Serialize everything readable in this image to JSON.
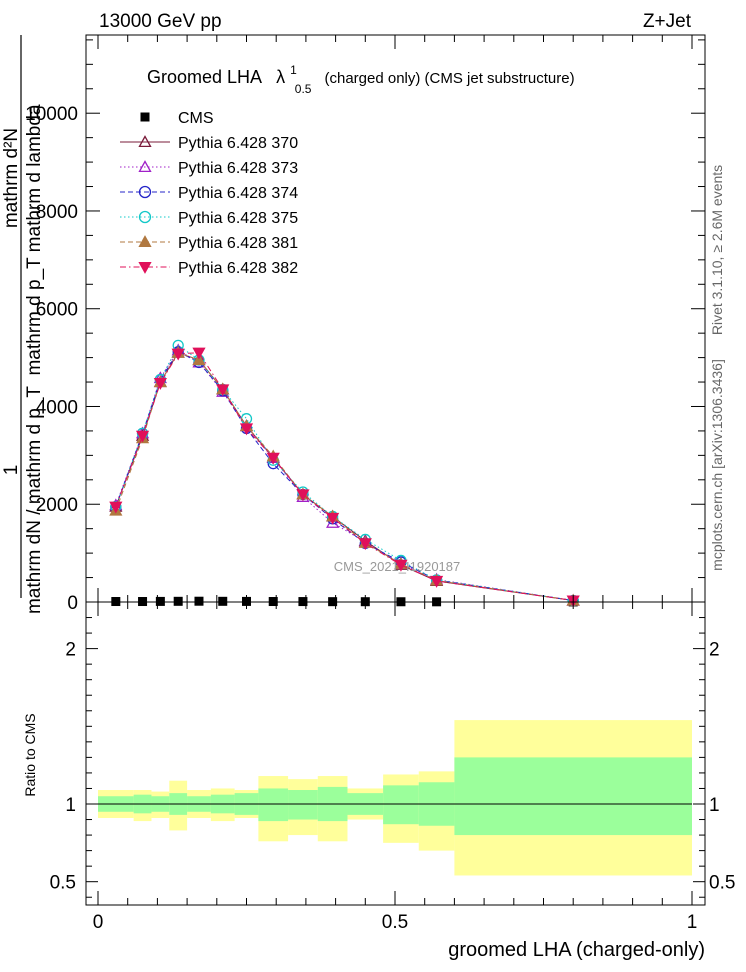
{
  "header": {
    "left": "13000 GeV pp",
    "right": "Z+Jet"
  },
  "side_labels": {
    "rivet": "Rivet 3.1.10, ≥ 2.6M events",
    "mcplots": "mcplots.cern.ch [arXiv:1306.3436]"
  },
  "chart_data": [
    {
      "type": "line",
      "panel": "main",
      "title": {
        "main": "Groomed LHA",
        "symbol": "λ",
        "superscript": "1",
        "subscript": "0.5",
        "suffix": "(charged only) (CMS jet substructure)"
      },
      "ylabel": {
        "numerator_one": "1",
        "upper": "mathrm d²N",
        "upper_lower": "mathrm d p_T mathrm d lambda",
        "lower": "mathrm dN / mathrm d p_T"
      },
      "watermark": "CMS_2021_I1920187",
      "xlim": [
        0,
        1
      ],
      "ylim": [
        0,
        11600
      ],
      "yticks": [
        0,
        2000,
        4000,
        6000,
        8000,
        10000
      ],
      "ytick_labels": [
        "0",
        "2000",
        "4000",
        "6000",
        "8000",
        "10000"
      ],
      "legend_position": "top-left",
      "x": [
        0.03,
        0.075,
        0.105,
        0.135,
        0.17,
        0.21,
        0.25,
        0.295,
        0.345,
        0.395,
        0.45,
        0.51,
        0.57,
        0.8
      ],
      "series": [
        {
          "name": "CMS",
          "color": "#000000",
          "marker": "square",
          "values": [
            10,
            10,
            12,
            14,
            16,
            14,
            12,
            10,
            9,
            7,
            6,
            5,
            4,
            2
          ]
        },
        {
          "name": "Pythia 6.428 370",
          "color": "#7a1b3a",
          "marker": "triangle-open",
          "dash": "solid",
          "values": [
            1950,
            3400,
            4500,
            5100,
            4950,
            4350,
            3600,
            2950,
            2200,
            1750,
            1250,
            760,
            430,
            30
          ]
        },
        {
          "name": "Pythia 6.428 373",
          "color": "#a020c8",
          "marker": "triangle-open",
          "dash": "dotted",
          "values": [
            1980,
            3450,
            4580,
            5150,
            4900,
            4300,
            3600,
            2950,
            2150,
            1620,
            1230,
            780,
            460,
            30
          ]
        },
        {
          "name": "Pythia 6.428 374",
          "color": "#2424c8",
          "marker": "circle-open",
          "dash": "dashed",
          "values": [
            1950,
            3450,
            4550,
            5120,
            4900,
            4320,
            3550,
            2830,
            2200,
            1700,
            1200,
            820,
            450,
            30
          ]
        },
        {
          "name": "Pythia 6.428 375",
          "color": "#12c8c8",
          "marker": "circle-open",
          "dash": "dotted",
          "values": [
            1950,
            3450,
            4550,
            5250,
            4950,
            4350,
            3750,
            2900,
            2250,
            1750,
            1280,
            850,
            450,
            30
          ]
        },
        {
          "name": "Pythia 6.428 381",
          "color": "#b07840",
          "marker": "triangle-filled",
          "dash": "dashed",
          "values": [
            1870,
            3350,
            4500,
            5100,
            4950,
            4350,
            3600,
            2980,
            2200,
            1750,
            1210,
            780,
            440,
            30
          ]
        },
        {
          "name": "Pythia 6.428 382",
          "color": "#e0105a",
          "marker": "triangle-down-filled",
          "dash": "dashdot",
          "values": [
            1950,
            3400,
            4480,
            5080,
            5100,
            4350,
            3550,
            2950,
            2200,
            1720,
            1200,
            760,
            430,
            30
          ]
        }
      ]
    },
    {
      "type": "area",
      "panel": "ratio",
      "ylabel": "Ratio to CMS",
      "xlabel": "groomed LHA (charged-only)",
      "xlim": [
        0,
        1
      ],
      "ylim": [
        0.35,
        2.3
      ],
      "yticks": [
        0.5,
        1,
        2
      ],
      "ytick_labels": [
        "0.5",
        "1",
        "2"
      ],
      "xticks": [
        0,
        0.5,
        1
      ],
      "xtick_labels": [
        "0",
        "0.5",
        "1"
      ],
      "bins": [
        {
          "x0": 0.0,
          "x1": 0.06,
          "stat": [
            0.95,
            1.05
          ],
          "total": [
            0.91,
            1.09
          ]
        },
        {
          "x0": 0.06,
          "x1": 0.09,
          "stat": [
            0.94,
            1.06
          ],
          "total": [
            0.89,
            1.09
          ]
        },
        {
          "x0": 0.09,
          "x1": 0.12,
          "stat": [
            0.95,
            1.05
          ],
          "total": [
            0.91,
            1.08
          ]
        },
        {
          "x0": 0.12,
          "x1": 0.15,
          "stat": [
            0.93,
            1.07
          ],
          "total": [
            0.83,
            1.15
          ]
        },
        {
          "x0": 0.15,
          "x1": 0.19,
          "stat": [
            0.95,
            1.05
          ],
          "total": [
            0.91,
            1.09
          ]
        },
        {
          "x0": 0.19,
          "x1": 0.23,
          "stat": [
            0.94,
            1.06
          ],
          "total": [
            0.89,
            1.1
          ]
        },
        {
          "x0": 0.23,
          "x1": 0.27,
          "stat": [
            0.93,
            1.07
          ],
          "total": [
            0.91,
            1.09
          ]
        },
        {
          "x0": 0.27,
          "x1": 0.32,
          "stat": [
            0.89,
            1.1
          ],
          "total": [
            0.76,
            1.18
          ]
        },
        {
          "x0": 0.32,
          "x1": 0.37,
          "stat": [
            0.9,
            1.09
          ],
          "total": [
            0.8,
            1.16
          ]
        },
        {
          "x0": 0.37,
          "x1": 0.42,
          "stat": [
            0.89,
            1.11
          ],
          "total": [
            0.76,
            1.18
          ]
        },
        {
          "x0": 0.42,
          "x1": 0.48,
          "stat": [
            0.93,
            1.07
          ],
          "total": [
            0.9,
            1.1
          ]
        },
        {
          "x0": 0.48,
          "x1": 0.54,
          "stat": [
            0.87,
            1.12
          ],
          "total": [
            0.75,
            1.19
          ]
        },
        {
          "x0": 0.54,
          "x1": 0.6,
          "stat": [
            0.86,
            1.14
          ],
          "total": [
            0.7,
            1.21
          ]
        },
        {
          "x0": 0.6,
          "x1": 1.0,
          "stat": [
            0.8,
            1.3
          ],
          "total": [
            0.54,
            1.54
          ]
        }
      ],
      "stat_color": "#9bff9b",
      "total_color": "#ffff9b"
    }
  ]
}
